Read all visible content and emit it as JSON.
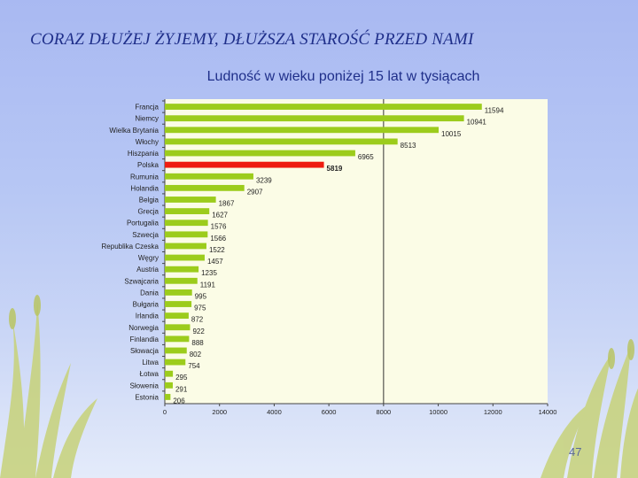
{
  "slide": {
    "title": "CORAZ DŁUŻEJ ŻYJEMY, DŁUŻSZA STAROŚĆ PRZED NAMI",
    "page_number": "47"
  },
  "colors": {
    "bar": "#9ccc1c",
    "highlight": "#ee1c10",
    "axis_text": "#222222"
  },
  "chart_data": {
    "type": "bar",
    "orientation": "horizontal",
    "title": "Ludność w wieku poniżej 15 lat w tysiącach",
    "xlim": [
      0,
      14000
    ],
    "xticks": [
      "0",
      "2000",
      "4000",
      "6000",
      "8000",
      "10000",
      "12000",
      "14000"
    ],
    "reference_line": 8000,
    "highlight_category": "Polska",
    "categories": [
      "Francja",
      "Niemcy",
      "Wielka Brytania",
      "Włochy",
      "Hiszpania",
      "Polska",
      "Rumunia",
      "Holandia",
      "Belgia",
      "Grecja",
      "Portugalia",
      "Szwecja",
      "Republika Czeska",
      "Węgry",
      "Austria",
      "Szwajcaria",
      "Dania",
      "Bułgaria",
      "Irlandia",
      "Norwegia",
      "Finlandia",
      "Słowacja",
      "Litwa",
      "Łotwa",
      "Słowenia",
      "Estonia"
    ],
    "values": [
      11594,
      10941,
      10015,
      8513,
      6965,
      5819,
      3239,
      2907,
      1867,
      1627,
      1576,
      1566,
      1522,
      1457,
      1235,
      1191,
      995,
      975,
      872,
      922,
      888,
      802,
      754,
      295,
      291,
      206
    ]
  }
}
